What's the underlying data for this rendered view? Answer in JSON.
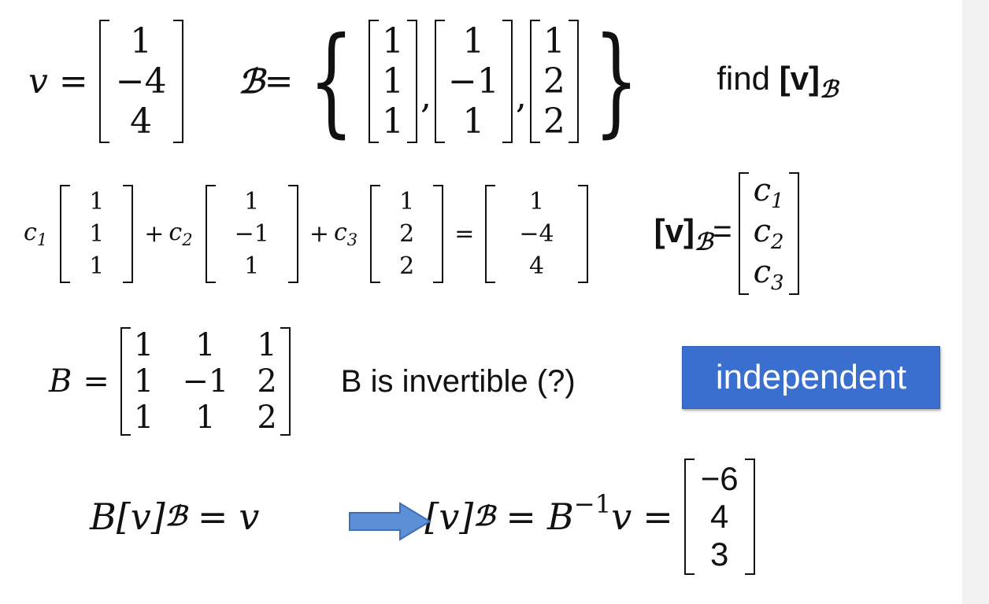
{
  "row1": {
    "v_label": "v",
    "eq": "=",
    "v_entries": [
      "1",
      "−4",
      "4"
    ],
    "set_label": "ℬ",
    "set_eq": "=",
    "basis": [
      [
        "1",
        "1",
        "1"
      ],
      [
        "1",
        "−1",
        "1"
      ],
      [
        "1",
        "2",
        "2"
      ]
    ],
    "comma": ",",
    "find_text": "find ",
    "find_v": "[v]",
    "find_sub": "ℬ"
  },
  "row2": {
    "c1": "c",
    "c1_sub": "1",
    "c2": "c",
    "c2_sub": "2",
    "c3": "c",
    "c3_sub": "3",
    "plus": "+",
    "eq": "=",
    "rhs": [
      "1",
      "−4",
      "4"
    ],
    "vb": "[v]",
    "vb_sub": "ℬ",
    "vb_eq": "=",
    "coords": [
      [
        "c",
        "1"
      ],
      [
        "c",
        "2"
      ],
      [
        "c",
        "3"
      ]
    ]
  },
  "row3": {
    "B_label": "B",
    "eq": "=",
    "B_matrix": [
      [
        "1",
        "1",
        "1"
      ],
      [
        "1",
        "−1",
        "2"
      ],
      [
        "1",
        "1",
        "2"
      ]
    ],
    "note": "B is invertible (?)",
    "badge": "independent"
  },
  "row4": {
    "lhs_B": "B",
    "lhs_bracket": "[v]",
    "lhs_sub": "ℬ",
    "lhs_eq": "=",
    "lhs_v": "v",
    "rhs_bracket": "[v]",
    "rhs_sub": "ℬ",
    "rhs_eq": "=",
    "rhs_B": "B",
    "rhs_exp": "−1",
    "rhs_v": "v",
    "result_eq": "=",
    "result": [
      "−6",
      "4",
      "3"
    ]
  },
  "colors": {
    "badge_bg": "#3a6fd0",
    "arrow": "#5b8fd6"
  }
}
